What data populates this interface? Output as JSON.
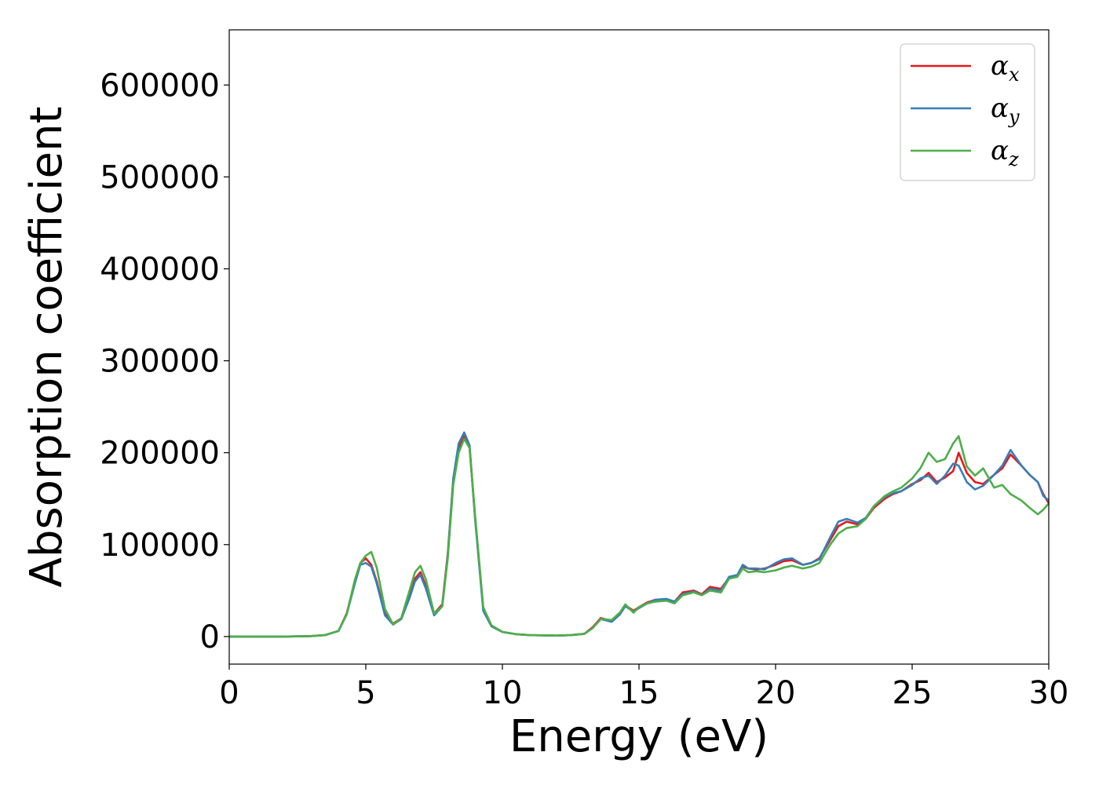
{
  "chart_data": {
    "type": "line",
    "title": "",
    "xlabel": "Energy (eV)",
    "ylabel": "Absorption coefficient",
    "xlim": [
      0,
      30
    ],
    "ylim": [
      -30000,
      660000
    ],
    "xticks": [
      0,
      5,
      10,
      15,
      20,
      25,
      30
    ],
    "xtick_labels": [
      "0",
      "5",
      "10",
      "15",
      "20",
      "25",
      "30"
    ],
    "yticks": [
      0,
      100000,
      200000,
      300000,
      400000,
      500000,
      600000
    ],
    "ytick_labels": [
      "0",
      "100000",
      "200000",
      "300000",
      "400000",
      "500000",
      "600000"
    ],
    "grid": false,
    "legend_position": "top-right",
    "x": [
      0,
      1,
      2,
      3,
      3.5,
      4,
      4.3,
      4.6,
      4.8,
      5.0,
      5.2,
      5.4,
      5.7,
      6.0,
      6.3,
      6.6,
      6.8,
      7.0,
      7.2,
      7.5,
      7.8,
      8.0,
      8.2,
      8.4,
      8.6,
      8.8,
      9.0,
      9.3,
      9.6,
      10.0,
      10.5,
      11,
      12,
      12.5,
      13,
      13.3,
      13.6,
      14.0,
      14.3,
      14.5,
      14.8,
      15.0,
      15.3,
      15.6,
      16.0,
      16.3,
      16.6,
      17.0,
      17.3,
      17.6,
      18.0,
      18.3,
      18.6,
      18.8,
      19.0,
      19.3,
      19.6,
      20.0,
      20.3,
      20.6,
      21.0,
      21.3,
      21.6,
      22.0,
      22.3,
      22.6,
      23.0,
      23.3,
      23.6,
      24.0,
      24.3,
      24.6,
      25.0,
      25.3,
      25.6,
      25.9,
      26.2,
      26.5,
      26.7,
      27.0,
      27.3,
      27.6,
      28.0,
      28.3,
      28.6,
      29.0,
      29.3,
      29.6,
      29.8,
      30.0
    ],
    "series": [
      {
        "name": "α_x",
        "color": "#e41a1c",
        "values": [
          0,
          0,
          0,
          500,
          1500,
          6000,
          25000,
          60000,
          80000,
          85000,
          78000,
          60000,
          25000,
          14000,
          20000,
          45000,
          63000,
          70000,
          55000,
          25000,
          35000,
          90000,
          170000,
          205000,
          218000,
          205000,
          130000,
          30000,
          12000,
          5000,
          2500,
          1500,
          1000,
          1500,
          3000,
          10000,
          20000,
          17000,
          25000,
          34000,
          28000,
          32000,
          37000,
          40000,
          40000,
          38000,
          48000,
          50000,
          46000,
          54000,
          52000,
          64000,
          66000,
          76000,
          74000,
          73000,
          74000,
          78000,
          82000,
          83000,
          78000,
          80000,
          85000,
          105000,
          120000,
          125000,
          122000,
          128000,
          140000,
          150000,
          155000,
          158000,
          166000,
          170000,
          178000,
          168000,
          173000,
          180000,
          200000,
          178000,
          168000,
          166000,
          176000,
          183000,
          198000,
          186000,
          176000,
          168000,
          155000,
          145000
        ]
      },
      {
        "name": "α_y",
        "color": "#377eb8",
        "values": [
          0,
          0,
          0,
          500,
          1500,
          6000,
          24000,
          58000,
          78000,
          80000,
          76000,
          58000,
          23000,
          13000,
          19000,
          42000,
          60000,
          67000,
          52000,
          23000,
          33000,
          88000,
          172000,
          210000,
          222000,
          208000,
          128000,
          28000,
          11000,
          5000,
          2500,
          1500,
          1000,
          1500,
          3000,
          9000,
          19000,
          16000,
          24000,
          33000,
          27000,
          31000,
          36000,
          40000,
          41000,
          38000,
          46000,
          49000,
          45000,
          52000,
          50000,
          65000,
          67000,
          78000,
          74000,
          74000,
          73000,
          80000,
          84000,
          85000,
          78000,
          80000,
          84000,
          108000,
          125000,
          128000,
          124000,
          129000,
          142000,
          152000,
          156000,
          158000,
          165000,
          172000,
          175000,
          166000,
          175000,
          188000,
          186000,
          168000,
          160000,
          164000,
          176000,
          186000,
          203000,
          186000,
          176000,
          168000,
          153000,
          148000
        ]
      },
      {
        "name": "α_z",
        "color": "#4daf4a",
        "values": [
          0,
          0,
          0,
          500,
          1500,
          6000,
          24000,
          62000,
          80000,
          88000,
          92000,
          75000,
          30000,
          13000,
          20000,
          50000,
          70000,
          77000,
          62000,
          25000,
          33000,
          85000,
          165000,
          200000,
          215000,
          205000,
          132000,
          32000,
          12000,
          5000,
          2500,
          1500,
          1000,
          1500,
          3000,
          9000,
          19000,
          18000,
          26000,
          35000,
          26000,
          32000,
          36000,
          38000,
          39000,
          36000,
          45000,
          48000,
          45000,
          50000,
          48000,
          63000,
          65000,
          74000,
          70000,
          71000,
          70000,
          72000,
          75000,
          77000,
          74000,
          76000,
          80000,
          100000,
          112000,
          118000,
          120000,
          128000,
          142000,
          153000,
          158000,
          162000,
          172000,
          183000,
          200000,
          190000,
          193000,
          210000,
          218000,
          185000,
          175000,
          183000,
          162000,
          165000,
          155000,
          148000,
          140000,
          133000,
          138000,
          145000
        ]
      }
    ]
  }
}
